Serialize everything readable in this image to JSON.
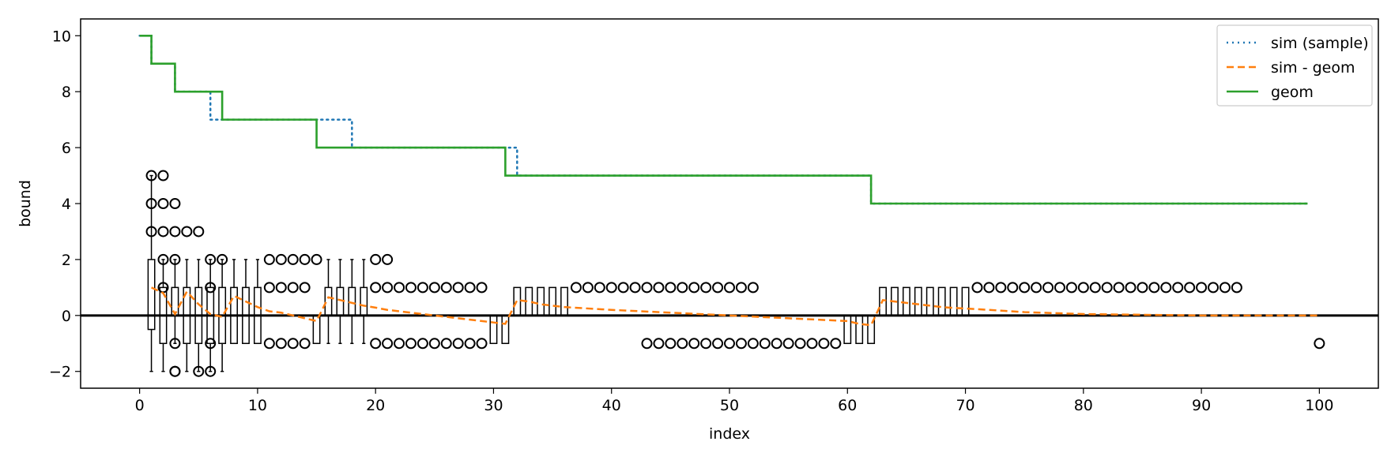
{
  "chart_data": {
    "type": "line",
    "title": "",
    "xlabel": "index",
    "ylabel": "bound",
    "xlim": [
      -5,
      105
    ],
    "ylim": [
      -2.6,
      10.6
    ],
    "xticks": [
      0,
      10,
      20,
      30,
      40,
      50,
      60,
      70,
      80,
      90,
      100
    ],
    "yticks": [
      -2,
      0,
      2,
      4,
      6,
      8,
      10
    ],
    "grid": false,
    "legend_position": "top-right",
    "zero_line": 0,
    "series": [
      {
        "name": "sim (sample)",
        "style": "dotted",
        "color": "#1f77b4",
        "steps": [
          [
            0,
            10
          ],
          [
            1,
            9
          ],
          [
            3,
            8
          ],
          [
            6,
            7
          ],
          [
            15,
            7
          ],
          [
            18,
            6
          ],
          [
            32,
            5
          ],
          [
            62,
            4
          ],
          [
            99,
            4
          ]
        ]
      },
      {
        "name": "sim - geom",
        "style": "dashed",
        "color": "#ff7f0e",
        "x": [
          1,
          2,
          3,
          4,
          5,
          6,
          7,
          8,
          9,
          10,
          11,
          12,
          13,
          14,
          15,
          16,
          17,
          18,
          19,
          20,
          21,
          22,
          23,
          24,
          25,
          26,
          27,
          28,
          29,
          30,
          31,
          32,
          33,
          34,
          35,
          36,
          40,
          45,
          50,
          55,
          60,
          61,
          62,
          63,
          64,
          65,
          66,
          67,
          68,
          69,
          70,
          72,
          75,
          80,
          90,
          100
        ],
        "y": [
          1.0,
          0.8,
          0.05,
          0.85,
          0.4,
          0.05,
          -0.05,
          0.7,
          0.5,
          0.3,
          0.15,
          0.1,
          0.0,
          -0.1,
          -0.2,
          0.65,
          0.55,
          0.45,
          0.35,
          0.28,
          0.2,
          0.15,
          0.1,
          0.05,
          0.0,
          -0.05,
          -0.1,
          -0.15,
          -0.2,
          -0.25,
          -0.3,
          0.55,
          0.5,
          0.4,
          0.35,
          0.3,
          0.2,
          0.1,
          0.0,
          -0.1,
          -0.2,
          -0.3,
          -0.35,
          0.55,
          0.5,
          0.45,
          0.4,
          0.35,
          0.3,
          0.27,
          0.25,
          0.2,
          0.12,
          0.05,
          0.0,
          0.0
        ]
      },
      {
        "name": "geom",
        "style": "solid",
        "color": "#2ca02c",
        "steps": [
          [
            0,
            10
          ],
          [
            1,
            9
          ],
          [
            3,
            8
          ],
          [
            7,
            7
          ],
          [
            15,
            6
          ],
          [
            31,
            5
          ],
          [
            62,
            4
          ],
          [
            99,
            4
          ]
        ]
      }
    ],
    "boxplots": [
      {
        "x": 1,
        "q1": -0.5,
        "q3": 2,
        "wlo": -2,
        "whi": 5,
        "out": [
          5,
          4,
          3
        ]
      },
      {
        "x": 2,
        "q1": -1,
        "q3": 1,
        "wlo": -2,
        "whi": 2,
        "out": [
          5,
          4,
          3,
          2,
          1
        ]
      },
      {
        "x": 3,
        "q1": 0,
        "q3": 1,
        "wlo": -1,
        "whi": 2,
        "out": [
          4,
          3,
          2,
          -1,
          -2,
          -2
        ]
      },
      {
        "x": 4,
        "q1": -1,
        "q3": 1,
        "wlo": -2,
        "whi": 2,
        "out": [
          3
        ]
      },
      {
        "x": 5,
        "q1": -1,
        "q3": 1,
        "wlo": -2,
        "whi": 2,
        "out": [
          3,
          -2
        ]
      },
      {
        "x": 6,
        "q1": -1,
        "q3": 1,
        "wlo": -2,
        "whi": 2,
        "out": [
          2,
          1,
          -1,
          -2
        ]
      },
      {
        "x": 7,
        "q1": -1,
        "q3": 1,
        "wlo": -2,
        "whi": 2,
        "out": [
          2
        ]
      },
      {
        "x": 8,
        "q1": -1,
        "q3": 1,
        "wlo": -1,
        "whi": 2,
        "out": []
      },
      {
        "x": 9,
        "q1": -1,
        "q3": 1,
        "wlo": -1,
        "whi": 2,
        "out": []
      },
      {
        "x": 10,
        "q1": -1,
        "q3": 1,
        "wlo": -1,
        "whi": 2,
        "out": []
      },
      {
        "x": 11,
        "q1": 0,
        "q3": 0,
        "wlo": 0,
        "whi": 0,
        "out": [
          2,
          1,
          -1
        ]
      },
      {
        "x": 12,
        "q1": 0,
        "q3": 0,
        "wlo": 0,
        "whi": 0,
        "out": [
          2,
          1,
          -1
        ]
      },
      {
        "x": 13,
        "q1": 0,
        "q3": 0,
        "wlo": 0,
        "whi": 0,
        "out": [
          2,
          1,
          -1
        ]
      },
      {
        "x": 14,
        "q1": 0,
        "q3": 0,
        "wlo": 0,
        "whi": 0,
        "out": [
          2,
          1,
          -1
        ]
      },
      {
        "x": 15,
        "q1": -1,
        "q3": 0,
        "wlo": -1,
        "whi": 0,
        "out": [
          2
        ]
      },
      {
        "x": 16,
        "q1": 0,
        "q3": 1,
        "wlo": -1,
        "whi": 2,
        "out": []
      },
      {
        "x": 17,
        "q1": 0,
        "q3": 1,
        "wlo": -1,
        "whi": 2,
        "out": []
      },
      {
        "x": 18,
        "q1": 0,
        "q3": 1,
        "wlo": -1,
        "whi": 2,
        "out": []
      },
      {
        "x": 19,
        "q1": 0,
        "q3": 1,
        "wlo": -1,
        "whi": 2,
        "out": []
      },
      {
        "x": 20,
        "q1": 0,
        "q3": 0,
        "wlo": 0,
        "whi": 0,
        "out": [
          2,
          1,
          -1
        ]
      },
      {
        "x": 21,
        "q1": 0,
        "q3": 0,
        "wlo": 0,
        "whi": 0,
        "out": [
          2,
          1,
          -1
        ]
      },
      {
        "x": 22,
        "q1": 0,
        "q3": 0,
        "wlo": 0,
        "whi": 0,
        "out": [
          1,
          -1
        ]
      },
      {
        "x": 23,
        "q1": 0,
        "q3": 0,
        "wlo": 0,
        "whi": 0,
        "out": [
          1,
          -1
        ]
      },
      {
        "x": 24,
        "q1": 0,
        "q3": 0,
        "wlo": 0,
        "whi": 0,
        "out": [
          1,
          -1
        ]
      },
      {
        "x": 25,
        "q1": 0,
        "q3": 0,
        "wlo": 0,
        "whi": 0,
        "out": [
          1,
          -1
        ]
      },
      {
        "x": 26,
        "q1": 0,
        "q3": 0,
        "wlo": 0,
        "whi": 0,
        "out": [
          1,
          -1
        ]
      },
      {
        "x": 27,
        "q1": 0,
        "q3": 0,
        "wlo": 0,
        "whi": 0,
        "out": [
          1,
          -1
        ]
      },
      {
        "x": 28,
        "q1": 0,
        "q3": 0,
        "wlo": 0,
        "whi": 0,
        "out": [
          1,
          -1
        ]
      },
      {
        "x": 29,
        "q1": 0,
        "q3": 0,
        "wlo": 0,
        "whi": 0,
        "out": [
          1,
          -1
        ]
      },
      {
        "x": 30,
        "q1": -1,
        "q3": 0,
        "wlo": -1,
        "whi": 0,
        "out": []
      },
      {
        "x": 31,
        "q1": -1,
        "q3": 0,
        "wlo": -1,
        "whi": 0,
        "out": []
      },
      {
        "x": 32,
        "q1": 0,
        "q3": 1,
        "wlo": 0,
        "whi": 1,
        "out": []
      },
      {
        "x": 33,
        "q1": 0,
        "q3": 1,
        "wlo": 0,
        "whi": 1,
        "out": []
      },
      {
        "x": 34,
        "q1": 0,
        "q3": 1,
        "wlo": 0,
        "whi": 1,
        "out": []
      },
      {
        "x": 35,
        "q1": 0,
        "q3": 1,
        "wlo": 0,
        "whi": 1,
        "out": []
      },
      {
        "x": 36,
        "q1": 0,
        "q3": 1,
        "wlo": 0,
        "whi": 1,
        "out": []
      },
      {
        "x": 37,
        "q1": 0,
        "q3": 0,
        "wlo": 0,
        "whi": 0,
        "out": [
          1
        ]
      },
      {
        "x": 38,
        "q1": 0,
        "q3": 0,
        "wlo": 0,
        "whi": 0,
        "out": [
          1
        ]
      },
      {
        "x": 39,
        "q1": 0,
        "q3": 0,
        "wlo": 0,
        "whi": 0,
        "out": [
          1
        ]
      },
      {
        "x": 40,
        "q1": 0,
        "q3": 0,
        "wlo": 0,
        "whi": 0,
        "out": [
          1
        ]
      },
      {
        "x": 41,
        "q1": 0,
        "q3": 0,
        "wlo": 0,
        "whi": 0,
        "out": [
          1
        ]
      },
      {
        "x": 42,
        "q1": 0,
        "q3": 0,
        "wlo": 0,
        "whi": 0,
        "out": [
          1
        ]
      },
      {
        "x": 43,
        "q1": 0,
        "q3": 0,
        "wlo": 0,
        "whi": 0,
        "out": [
          1,
          -1
        ]
      },
      {
        "x": 44,
        "q1": 0,
        "q3": 0,
        "wlo": 0,
        "whi": 0,
        "out": [
          1,
          -1
        ]
      },
      {
        "x": 45,
        "q1": 0,
        "q3": 0,
        "wlo": 0,
        "whi": 0,
        "out": [
          1,
          -1
        ]
      },
      {
        "x": 46,
        "q1": 0,
        "q3": 0,
        "wlo": 0,
        "whi": 0,
        "out": [
          1,
          -1
        ]
      },
      {
        "x": 47,
        "q1": 0,
        "q3": 0,
        "wlo": 0,
        "whi": 0,
        "out": [
          1,
          -1
        ]
      },
      {
        "x": 48,
        "q1": 0,
        "q3": 0,
        "wlo": 0,
        "whi": 0,
        "out": [
          1,
          -1
        ]
      },
      {
        "x": 49,
        "q1": 0,
        "q3": 0,
        "wlo": 0,
        "whi": 0,
        "out": [
          1,
          -1
        ]
      },
      {
        "x": 50,
        "q1": 0,
        "q3": 0,
        "wlo": 0,
        "whi": 0,
        "out": [
          1,
          -1
        ]
      },
      {
        "x": 51,
        "q1": 0,
        "q3": 0,
        "wlo": 0,
        "whi": 0,
        "out": [
          1,
          -1
        ]
      },
      {
        "x": 52,
        "q1": 0,
        "q3": 0,
        "wlo": 0,
        "whi": 0,
        "out": [
          1,
          -1
        ]
      },
      {
        "x": 53,
        "q1": 0,
        "q3": 0,
        "wlo": 0,
        "whi": 0,
        "out": [
          -1
        ]
      },
      {
        "x": 54,
        "q1": 0,
        "q3": 0,
        "wlo": 0,
        "whi": 0,
        "out": [
          -1
        ]
      },
      {
        "x": 55,
        "q1": 0,
        "q3": 0,
        "wlo": 0,
        "whi": 0,
        "out": [
          -1
        ]
      },
      {
        "x": 56,
        "q1": 0,
        "q3": 0,
        "wlo": 0,
        "whi": 0,
        "out": [
          -1
        ]
      },
      {
        "x": 57,
        "q1": 0,
        "q3": 0,
        "wlo": 0,
        "whi": 0,
        "out": [
          -1
        ]
      },
      {
        "x": 58,
        "q1": 0,
        "q3": 0,
        "wlo": 0,
        "whi": 0,
        "out": [
          -1
        ]
      },
      {
        "x": 59,
        "q1": 0,
        "q3": 0,
        "wlo": 0,
        "whi": 0,
        "out": [
          -1
        ]
      },
      {
        "x": 60,
        "q1": -1,
        "q3": 0,
        "wlo": -1,
        "whi": 0,
        "out": []
      },
      {
        "x": 61,
        "q1": -1,
        "q3": 0,
        "wlo": -1,
        "whi": 0,
        "out": []
      },
      {
        "x": 62,
        "q1": -1,
        "q3": 0,
        "wlo": -1,
        "whi": 0,
        "out": []
      },
      {
        "x": 63,
        "q1": 0,
        "q3": 1,
        "wlo": 0,
        "whi": 1,
        "out": []
      },
      {
        "x": 64,
        "q1": 0,
        "q3": 1,
        "wlo": 0,
        "whi": 1,
        "out": []
      },
      {
        "x": 65,
        "q1": 0,
        "q3": 1,
        "wlo": 0,
        "whi": 1,
        "out": []
      },
      {
        "x": 66,
        "q1": 0,
        "q3": 1,
        "wlo": 0,
        "whi": 1,
        "out": []
      },
      {
        "x": 67,
        "q1": 0,
        "q3": 1,
        "wlo": 0,
        "whi": 1,
        "out": []
      },
      {
        "x": 68,
        "q1": 0,
        "q3": 1,
        "wlo": 0,
        "whi": 1,
        "out": []
      },
      {
        "x": 69,
        "q1": 0,
        "q3": 1,
        "wlo": 0,
        "whi": 1,
        "out": []
      },
      {
        "x": 70,
        "q1": 0,
        "q3": 1,
        "wlo": 0,
        "whi": 1,
        "out": []
      },
      {
        "x": 71,
        "q1": 0,
        "q3": 0,
        "wlo": 0,
        "whi": 0,
        "out": [
          1
        ]
      },
      {
        "x": 72,
        "q1": 0,
        "q3": 0,
        "wlo": 0,
        "whi": 0,
        "out": [
          1
        ]
      },
      {
        "x": 73,
        "q1": 0,
        "q3": 0,
        "wlo": 0,
        "whi": 0,
        "out": [
          1
        ]
      },
      {
        "x": 74,
        "q1": 0,
        "q3": 0,
        "wlo": 0,
        "whi": 0,
        "out": [
          1
        ]
      },
      {
        "x": 75,
        "q1": 0,
        "q3": 0,
        "wlo": 0,
        "whi": 0,
        "out": [
          1
        ]
      },
      {
        "x": 76,
        "q1": 0,
        "q3": 0,
        "wlo": 0,
        "whi": 0,
        "out": [
          1
        ]
      },
      {
        "x": 77,
        "q1": 0,
        "q3": 0,
        "wlo": 0,
        "whi": 0,
        "out": [
          1
        ]
      },
      {
        "x": 78,
        "q1": 0,
        "q3": 0,
        "wlo": 0,
        "whi": 0,
        "out": [
          1
        ]
      },
      {
        "x": 79,
        "q1": 0,
        "q3": 0,
        "wlo": 0,
        "whi": 0,
        "out": [
          1
        ]
      },
      {
        "x": 80,
        "q1": 0,
        "q3": 0,
        "wlo": 0,
        "whi": 0,
        "out": [
          1
        ]
      },
      {
        "x": 81,
        "q1": 0,
        "q3": 0,
        "wlo": 0,
        "whi": 0,
        "out": [
          1
        ]
      },
      {
        "x": 82,
        "q1": 0,
        "q3": 0,
        "wlo": 0,
        "whi": 0,
        "out": [
          1
        ]
      },
      {
        "x": 83,
        "q1": 0,
        "q3": 0,
        "wlo": 0,
        "whi": 0,
        "out": [
          1
        ]
      },
      {
        "x": 84,
        "q1": 0,
        "q3": 0,
        "wlo": 0,
        "whi": 0,
        "out": [
          1
        ]
      },
      {
        "x": 85,
        "q1": 0,
        "q3": 0,
        "wlo": 0,
        "whi": 0,
        "out": [
          1
        ]
      },
      {
        "x": 86,
        "q1": 0,
        "q3": 0,
        "wlo": 0,
        "whi": 0,
        "out": [
          1
        ]
      },
      {
        "x": 87,
        "q1": 0,
        "q3": 0,
        "wlo": 0,
        "whi": 0,
        "out": [
          1
        ]
      },
      {
        "x": 88,
        "q1": 0,
        "q3": 0,
        "wlo": 0,
        "whi": 0,
        "out": [
          1
        ]
      },
      {
        "x": 89,
        "q1": 0,
        "q3": 0,
        "wlo": 0,
        "whi": 0,
        "out": [
          1
        ]
      },
      {
        "x": 90,
        "q1": 0,
        "q3": 0,
        "wlo": 0,
        "whi": 0,
        "out": [
          1
        ]
      },
      {
        "x": 91,
        "q1": 0,
        "q3": 0,
        "wlo": 0,
        "whi": 0,
        "out": [
          1
        ]
      },
      {
        "x": 92,
        "q1": 0,
        "q3": 0,
        "wlo": 0,
        "whi": 0,
        "out": [
          1
        ]
      },
      {
        "x": 93,
        "q1": 0,
        "q3": 0,
        "wlo": 0,
        "whi": 0,
        "out": [
          1
        ]
      },
      {
        "x": 100,
        "q1": 0,
        "q3": 0,
        "wlo": 0,
        "whi": 0,
        "out": [
          -1
        ]
      }
    ]
  }
}
